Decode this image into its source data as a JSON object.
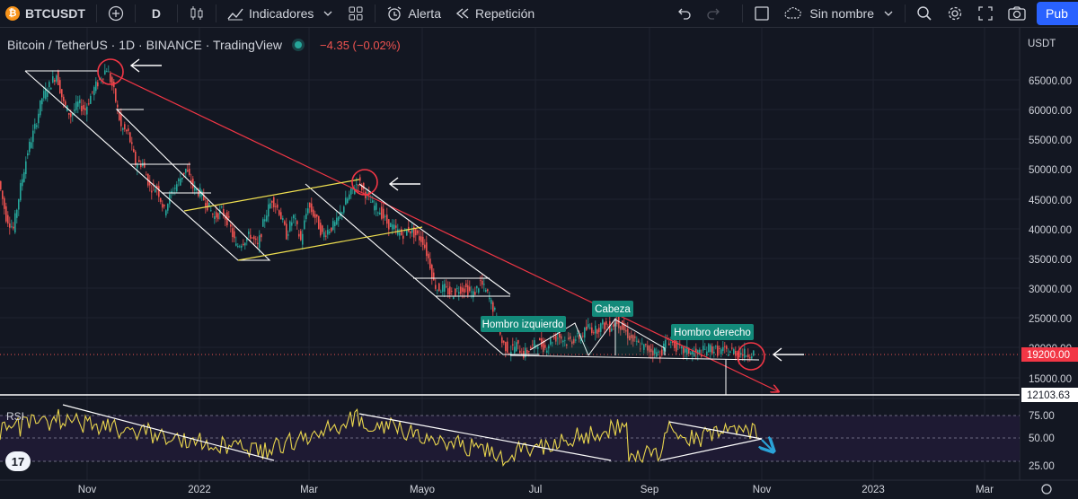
{
  "toolbar": {
    "symbol": "BTCUSDT",
    "interval": "D",
    "indicators_label": "Indicadores",
    "alert_label": "Alerta",
    "replay_label": "Repetición",
    "layout_name": "Sin nombre",
    "publish_label": "Pub"
  },
  "legend": {
    "title": "Bitcoin / TetherUS · 1D · BINANCE · TradingView",
    "change": "−4.35 (−0.02%)"
  },
  "price_axis": {
    "currency": "USDT",
    "ticks": [
      "65000.00",
      "60000.00",
      "55000.00",
      "50000.00",
      "45000.00",
      "40000.00",
      "35000.00",
      "30000.00",
      "25000.00",
      "20000.00",
      "15000.00"
    ],
    "current_price": "19200.00",
    "level_price": "12103.63"
  },
  "rsi": {
    "label": "RSI",
    "ticks": [
      "75.00",
      "50.00",
      "25.00"
    ]
  },
  "time_axis": {
    "ticks": [
      "Nov",
      "2022",
      "Mar",
      "Mayo",
      "Jul",
      "Sep",
      "Nov",
      "2023",
      "Mar"
    ]
  },
  "annotations": {
    "left_shoulder": "Hombro izquierdo",
    "head": "Cabeza",
    "right_shoulder": "Hombro derecho"
  },
  "colors": {
    "background": "#131722",
    "up_candle": "#26a69a",
    "down_candle": "#ef5350",
    "trendline_red": "#f23645",
    "channel_yellow": "#f0e050",
    "rsi_line": "#e8d44d",
    "label_bg": "#138a7a",
    "accent_blue": "#2962ff"
  },
  "chart_data": {
    "type": "candlestick",
    "symbol": "BTCUSDT",
    "interval": "1D",
    "ylim": [
      10000,
      70000
    ],
    "series": [
      {
        "name": "BTCUSDT",
        "values": [
          [
            0,
            48000
          ],
          [
            8,
            42000
          ],
          [
            16,
            40000
          ],
          [
            24,
            47000
          ],
          [
            32,
            53000
          ],
          [
            40,
            57000
          ],
          [
            48,
            62000
          ],
          [
            56,
            64000
          ],
          [
            64,
            66000
          ],
          [
            72,
            61000
          ],
          [
            80,
            59000
          ],
          [
            88,
            61000
          ],
          [
            96,
            60000
          ],
          [
            104,
            63000
          ],
          [
            112,
            65000
          ],
          [
            120,
            67000
          ],
          [
            128,
            63000
          ],
          [
            136,
            57000
          ],
          [
            144,
            56000
          ],
          [
            152,
            51000
          ],
          [
            160,
            51000
          ],
          [
            168,
            47000
          ],
          [
            176,
            47000
          ],
          [
            184,
            43000
          ],
          [
            192,
            46000
          ],
          [
            200,
            48000
          ],
          [
            208,
            50000
          ],
          [
            216,
            47000
          ],
          [
            224,
            46000
          ],
          [
            232,
            44000
          ],
          [
            240,
            42000
          ],
          [
            248,
            43000
          ],
          [
            256,
            41000
          ],
          [
            264,
            37000
          ],
          [
            272,
            38000
          ],
          [
            280,
            39000
          ],
          [
            288,
            37000
          ],
          [
            296,
            42000
          ],
          [
            304,
            45000
          ],
          [
            312,
            43000
          ],
          [
            320,
            39000
          ],
          [
            328,
            42000
          ],
          [
            336,
            38000
          ],
          [
            344,
            44000
          ],
          [
            352,
            42000
          ],
          [
            360,
            39000
          ],
          [
            368,
            40000
          ],
          [
            376,
            41000
          ],
          [
            384,
            44000
          ],
          [
            392,
            46000
          ],
          [
            400,
            48000
          ],
          [
            408,
            46000
          ],
          [
            416,
            44000
          ],
          [
            424,
            43000
          ],
          [
            432,
            41000
          ],
          [
            440,
            40000
          ],
          [
            448,
            39000
          ],
          [
            456,
            40000
          ],
          [
            464,
            39000
          ],
          [
            472,
            38000
          ],
          [
            480,
            34000
          ],
          [
            484,
            31000
          ],
          [
            488,
            30000
          ],
          [
            496,
            30000
          ],
          [
            504,
            29000
          ],
          [
            512,
            30000
          ],
          [
            520,
            30000
          ],
          [
            528,
            29000
          ],
          [
            536,
            31000
          ],
          [
            544,
            29000
          ],
          [
            552,
            26000
          ],
          [
            560,
            21000
          ],
          [
            568,
            19500
          ],
          [
            576,
            20500
          ],
          [
            584,
            19000
          ],
          [
            592,
            20000
          ],
          [
            600,
            21000
          ],
          [
            608,
            20000
          ],
          [
            616,
            21500
          ],
          [
            624,
            22000
          ],
          [
            632,
            21000
          ],
          [
            640,
            21500
          ],
          [
            648,
            22000
          ],
          [
            656,
            23500
          ],
          [
            664,
            23000
          ],
          [
            672,
            24000
          ],
          [
            680,
            23500
          ],
          [
            688,
            24500
          ],
          [
            696,
            23000
          ],
          [
            704,
            21500
          ],
          [
            712,
            20500
          ],
          [
            720,
            20000
          ],
          [
            728,
            19500
          ],
          [
            736,
            19000
          ],
          [
            744,
            21500
          ],
          [
            752,
            20500
          ],
          [
            760,
            19500
          ],
          [
            768,
            19500
          ],
          [
            776,
            19000
          ],
          [
            784,
            19500
          ],
          [
            792,
            20000
          ],
          [
            800,
            19500
          ],
          [
            808,
            19500
          ],
          [
            816,
            19500
          ],
          [
            824,
            19200
          ],
          [
            832,
            19000
          ],
          [
            840,
            19200
          ]
        ]
      }
    ]
  }
}
